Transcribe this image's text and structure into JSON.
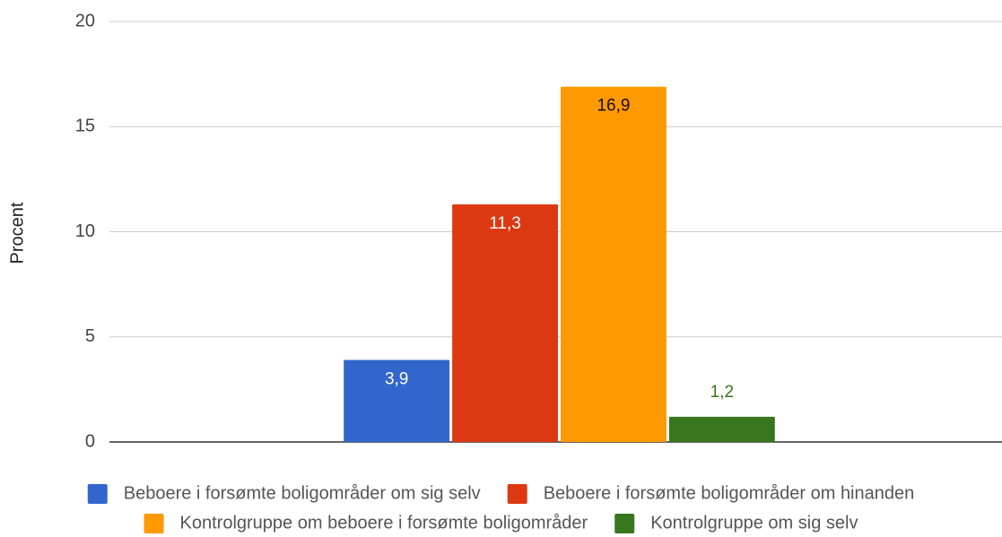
{
  "chart_data": {
    "type": "bar",
    "y_label": "Procent",
    "categories": [
      null
    ],
    "series": [
      {
        "name": "Beboere i forsømte boligområder om sig selv",
        "color": "#3366cc",
        "values": [
          3.9
        ],
        "value_labels": [
          "3,9"
        ]
      },
      {
        "name": "Beboere i forsømte boligområder om hinanden",
        "color": "#dc3912",
        "values": [
          11.3
        ],
        "value_labels": [
          "11,3"
        ]
      },
      {
        "name": "Kontrolgruppe om beboere i forsømte boligområder",
        "color": "#ff9900",
        "values": [
          16.9
        ],
        "value_labels": [
          "16,9"
        ]
      },
      {
        "name": "Kontrolgruppe om sig selv",
        "color": "#38761d",
        "values": [
          1.2
        ],
        "value_labels": [
          "1,2"
        ]
      }
    ],
    "ylim": [
      0,
      20
    ],
    "yticks": [
      0,
      5,
      10,
      15,
      20
    ],
    "grid": true,
    "legend": "bottom"
  }
}
